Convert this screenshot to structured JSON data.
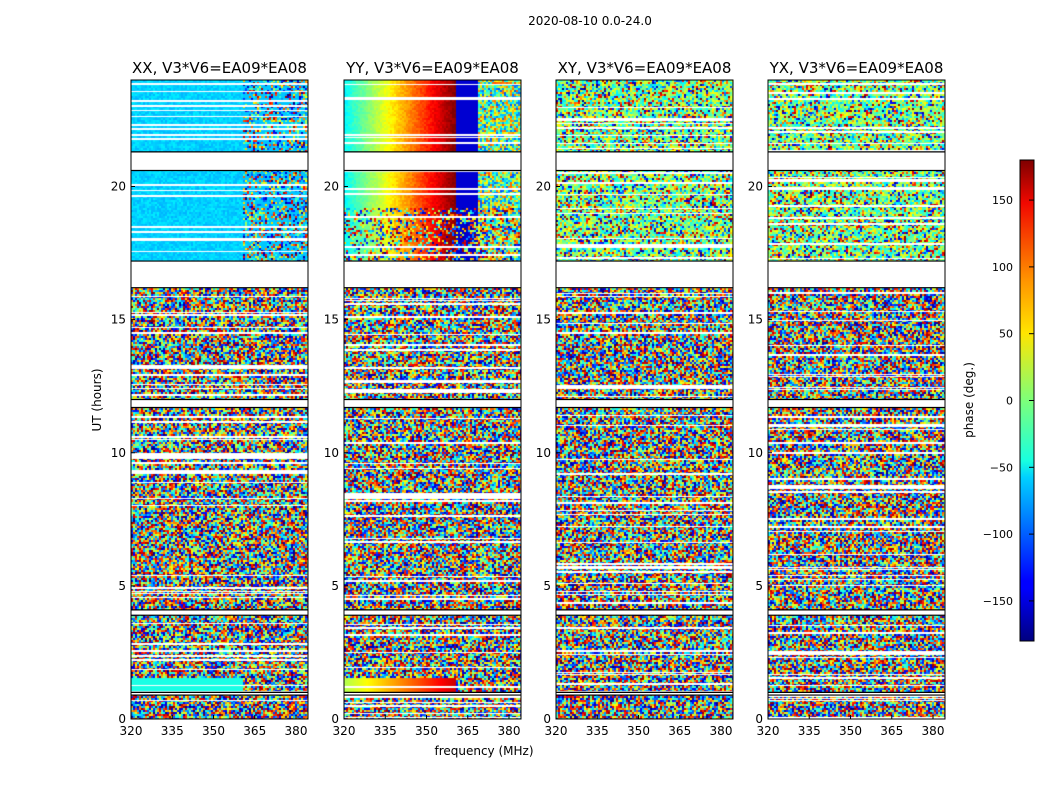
{
  "chart_data": {
    "type": "heatmap",
    "suptitle": "2020-08-10 0.0-24.0",
    "xlabel": "frequency (MHz)",
    "ylabel": "UT (hours)",
    "xlim": [
      320,
      382
    ],
    "ylim": [
      0,
      24
    ],
    "xticks": [
      "320",
      "335",
      "350",
      "365",
      "380"
    ],
    "yticks": [
      "0",
      "5",
      "10",
      "15",
      "20"
    ],
    "panels": [
      {
        "title": "XX, V3*V6=EA09*EA08",
        "pol": "XX"
      },
      {
        "title": "YY, V3*V6=EA09*EA08",
        "pol": "YY"
      },
      {
        "title": "XY, V3*V6=EA09*EA08",
        "pol": "XY"
      },
      {
        "title": "YX, V3*V6=EA09*EA08",
        "pol": "YX"
      }
    ],
    "flagged_ut_hours": [
      [
        21.3,
        20.6
      ],
      [
        17.2,
        16.2
      ],
      [
        12.0,
        11.7
      ],
      [
        4.1,
        3.9
      ],
      [
        1.0,
        0.9
      ]
    ],
    "colorbar": {
      "label": "phase (deg.)",
      "range": [
        -180,
        180
      ],
      "ticks": [
        "150",
        "100",
        "50",
        "0",
        "−50",
        "−100",
        "−150"
      ],
      "tick_values": [
        150,
        100,
        50,
        0,
        -50,
        -100,
        -150
      ],
      "colormap": "jet"
    }
  }
}
